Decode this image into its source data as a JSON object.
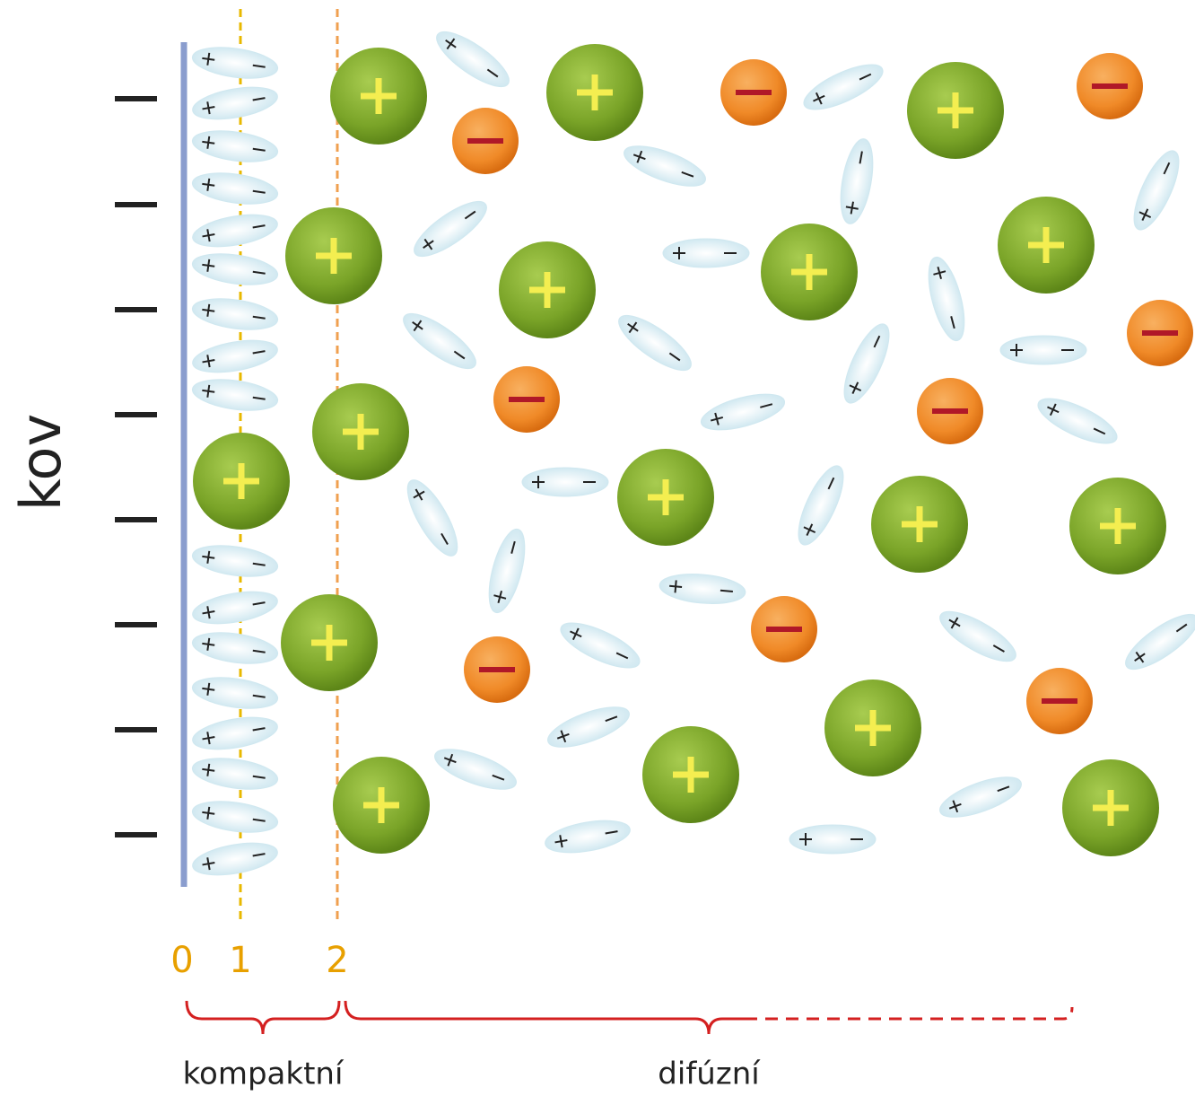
{
  "metal_label": "kov",
  "boundaries": {
    "labels": [
      "0",
      "1",
      "2"
    ]
  },
  "regions": {
    "compact": "kompaktní",
    "diffuse": "difúzní"
  }
}
